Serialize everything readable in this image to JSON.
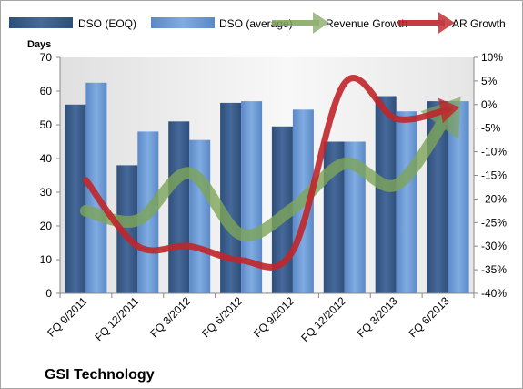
{
  "chart_data": {
    "type": "bar",
    "title": "GSI Technology",
    "ylabel": "Days",
    "categories": [
      "FQ 9/2011",
      "FQ 12/2011",
      "FQ 3/2012",
      "FQ 6/2012",
      "FQ 9/2012",
      "FQ 12/2012",
      "FQ 3/2013",
      "FQ 6/2013"
    ],
    "ylim": [
      0,
      70
    ],
    "yticks": [
      "0",
      "10",
      "20",
      "30",
      "40",
      "50",
      "60",
      "70"
    ],
    "y2lim": [
      -40,
      10
    ],
    "y2ticks": [
      "10%",
      "5%",
      "0%",
      "-5%",
      "-10%",
      "-15%",
      "-20%",
      "-25%",
      "-30%",
      "-35%",
      "-40%"
    ],
    "grid": false,
    "legend_position": "top",
    "series": [
      {
        "name": "DSO (EOQ)",
        "kind": "bar",
        "axis": "left",
        "color": "#3a5f8f",
        "values": [
          56,
          38,
          51,
          56.5,
          49.5,
          45,
          58.5,
          57
        ]
      },
      {
        "name": "DSO (average)",
        "kind": "bar",
        "axis": "left",
        "color": "#6d9bd6",
        "values": [
          62.5,
          48,
          45.5,
          57,
          54.5,
          45,
          54,
          57
        ]
      },
      {
        "name": "Revenue Growth",
        "kind": "line",
        "axis": "right",
        "color": "#7ea55a",
        "values": [
          -22.5,
          -24.5,
          -14.5,
          -27.5,
          -22,
          -12.5,
          -17,
          -2
        ]
      },
      {
        "name": "AR Growth",
        "kind": "line",
        "axis": "right",
        "color": "#c0262b",
        "values": [
          -16,
          -30,
          -30,
          -33,
          -31,
          4.5,
          -3,
          -1
        ]
      }
    ]
  }
}
